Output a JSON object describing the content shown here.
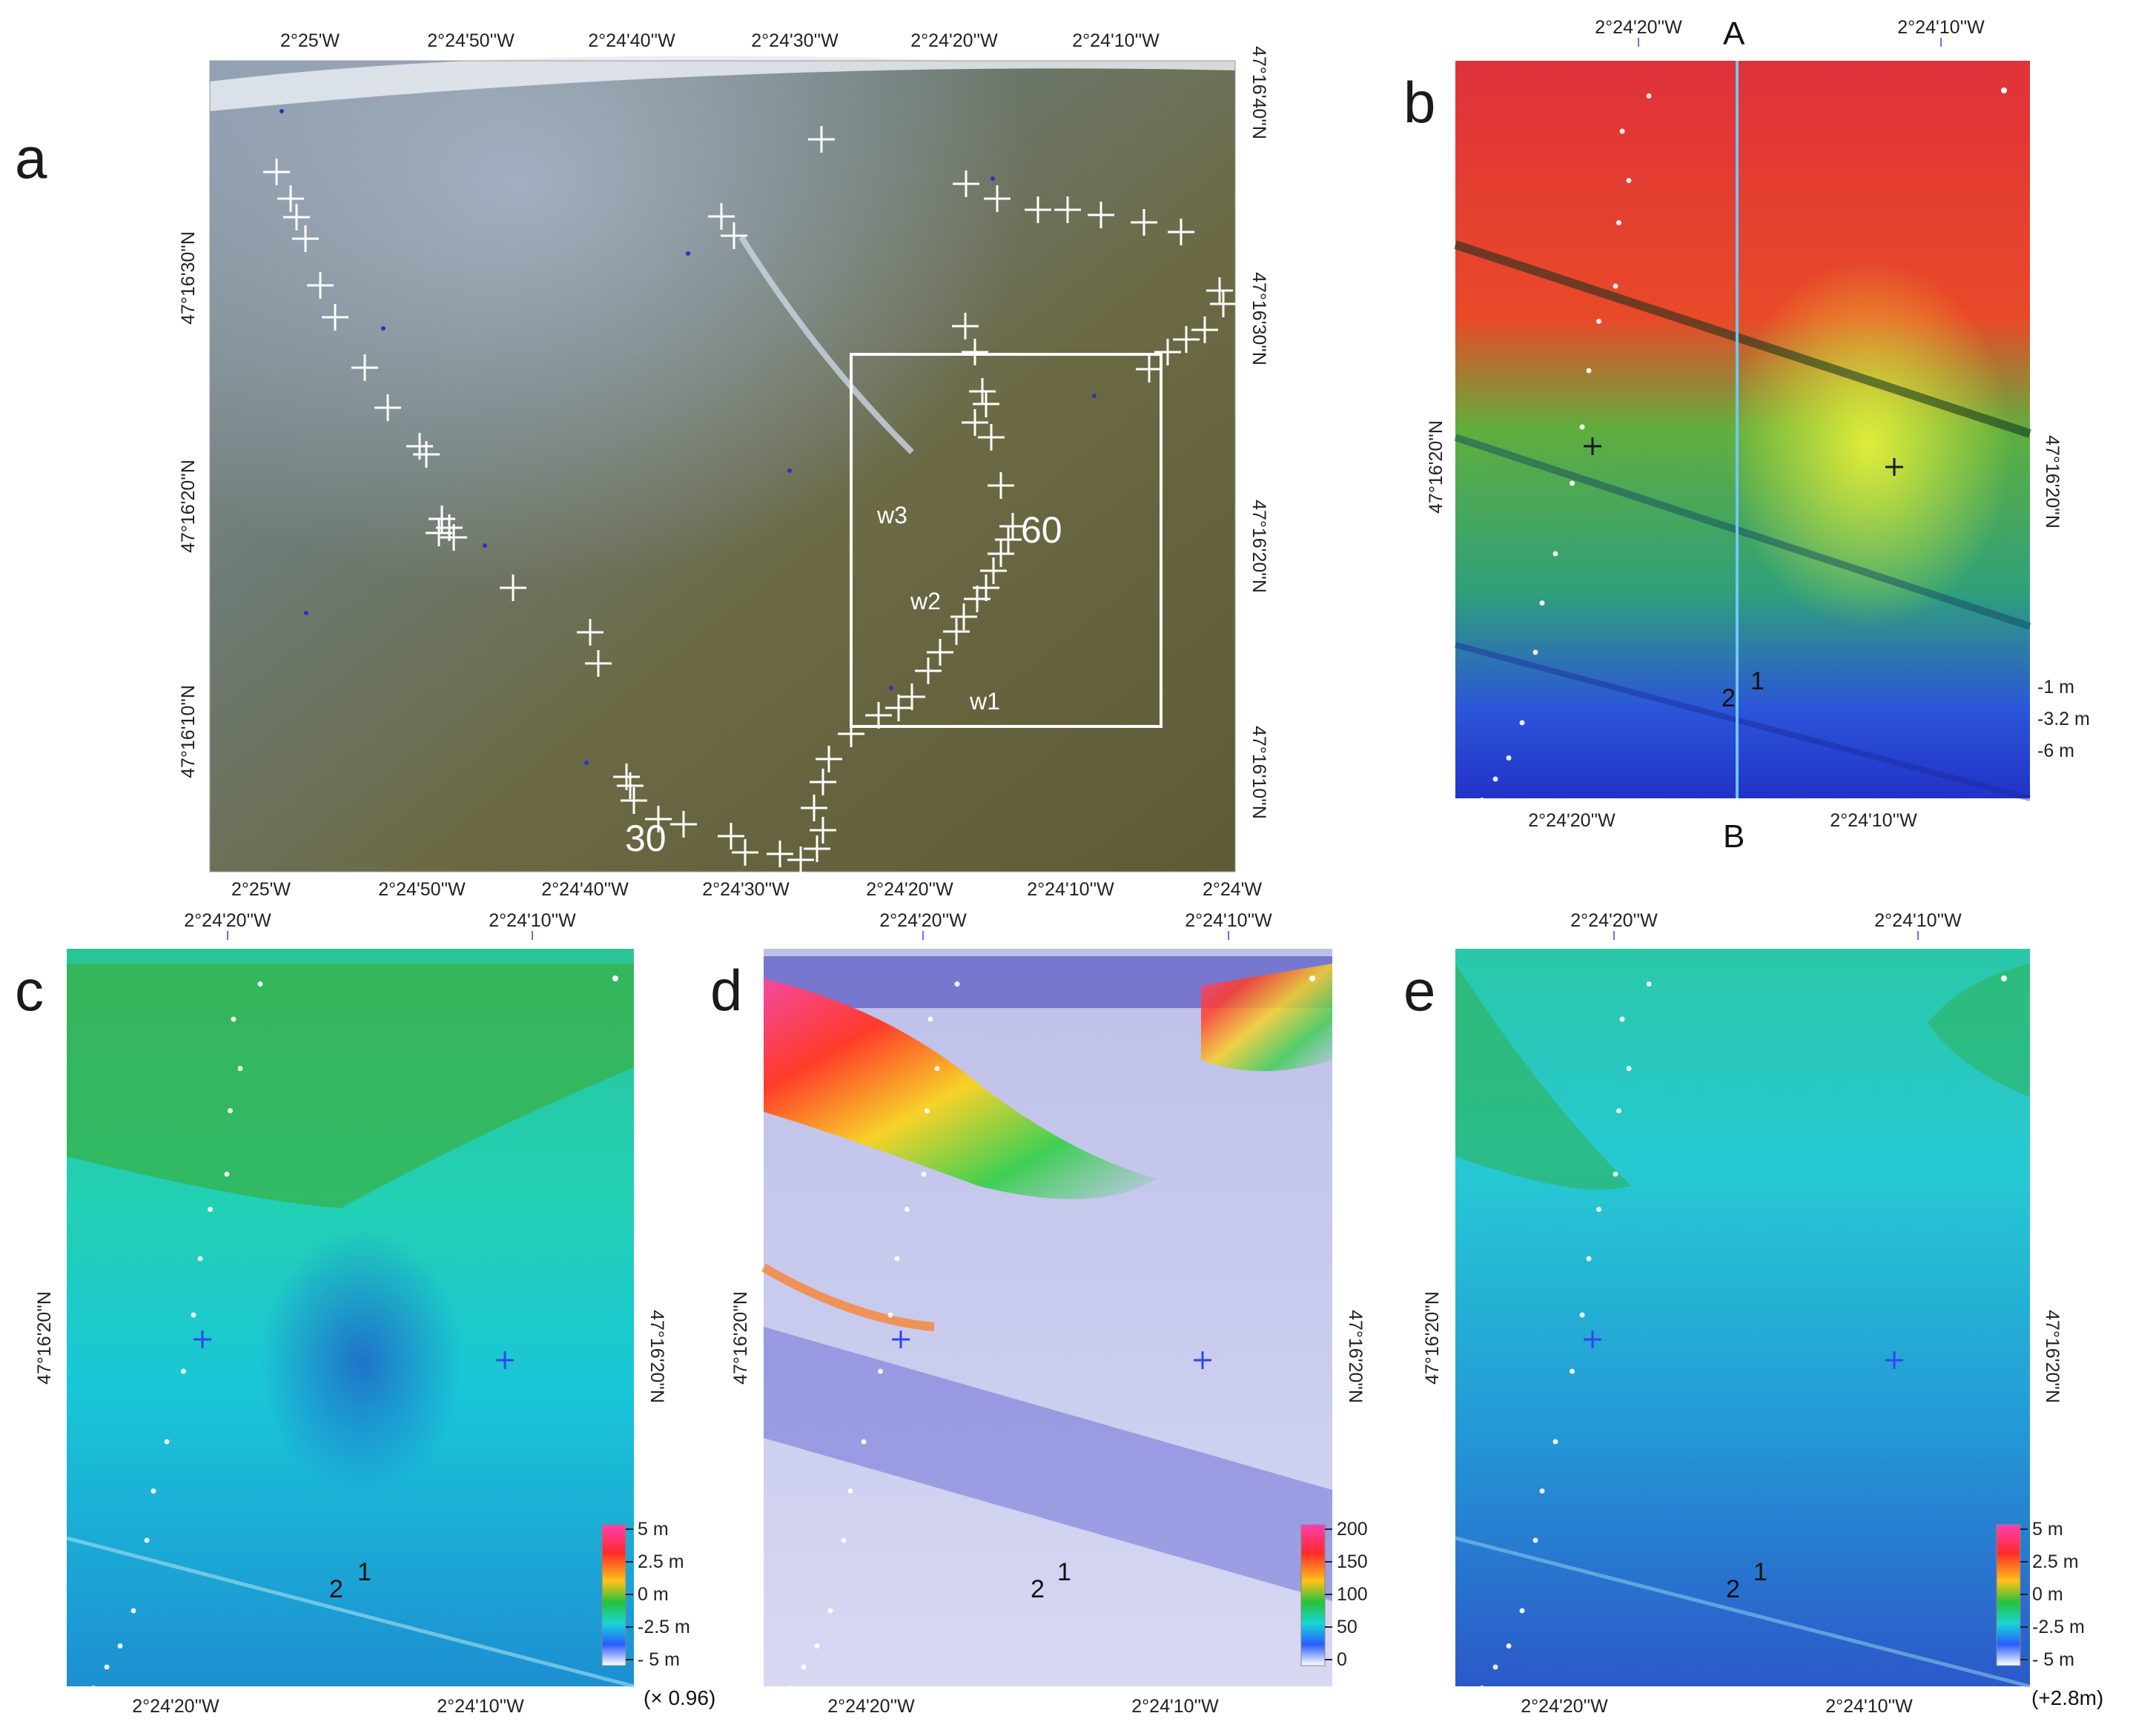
{
  "panels": {
    "a": {
      "label": "a",
      "top_ticks": [
        "2°25'W",
        "2°24'50''W",
        "2°24'40''W",
        "2°24'30''W",
        "2°24'20''W",
        "2°24'10''W"
      ],
      "bottom_ticks": [
        "2°25'W",
        "2°24'50''W",
        "2°24'40''W",
        "2°24'30''W",
        "2°24'20''W",
        "2°24'10''W",
        "2°24'W"
      ],
      "left_ticks": [
        "47°16'30''N",
        "47°16'20''N",
        "47°16'10''N"
      ],
      "right_ticks": [
        "47°16'40''N",
        "47°16'30''N",
        "47°16'20''N",
        "47°16'10''N"
      ],
      "annotations": [
        "w3",
        "w2",
        "w1",
        "60",
        "30"
      ]
    },
    "b": {
      "label": "b",
      "top_ticks": [
        "2°24'20''W",
        "2°24'10''W"
      ],
      "bottom_ticks": [
        "2°24'20''W",
        "2°24'10''W"
      ],
      "left_tick": "47°16'20''N",
      "right_tick": "47°16'20''N",
      "section_start": "A",
      "section_end": "B",
      "point_1": "1",
      "point_2": "2",
      "legend": [
        {
          "label": "-1 m",
          "color": "#ff2a3a"
        },
        {
          "label": "-3.2 m",
          "color": "#19d44a"
        },
        {
          "label": "-6 m",
          "color": "#2a4cff"
        }
      ]
    },
    "c": {
      "label": "c",
      "top_ticks": [
        "2°24'20''W",
        "2°24'10''W"
      ],
      "bottom_ticks": [
        "2°24'20''W",
        "2°24'10''W"
      ],
      "left_tick": "47°16'20''N",
      "right_tick": "47°16'20''N",
      "point_1": "1",
      "point_2": "2",
      "colorbar": [
        "5 m",
        "2.5 m",
        "0 m",
        "-2.5 m",
        "- 5 m"
      ],
      "note": "(× 0.96)"
    },
    "d": {
      "label": "d",
      "top_ticks": [
        "2°24'20''W",
        "2°24'10''W"
      ],
      "bottom_ticks": [
        "2°24'20''W",
        "2°24'10''W"
      ],
      "left_tick": "47°16'20''N",
      "right_tick": "47°16'20''N",
      "point_1": "1",
      "point_2": "2",
      "colorbar": [
        "200",
        "150",
        "100",
        "50",
        "0"
      ]
    },
    "e": {
      "label": "e",
      "top_ticks": [
        "2°24'20''W",
        "2°24'10''W"
      ],
      "bottom_ticks": [
        "2°24'20''W",
        "2°24'10''W"
      ],
      "left_tick": "47°16'20''N",
      "right_tick": "47°16'20''N",
      "point_1": "1",
      "point_2": "2",
      "colorbar": [
        "5 m",
        "2.5 m",
        "0 m",
        "-2.5 m",
        "- 5 m"
      ],
      "note": "(+2.8m)"
    }
  },
  "colors": {
    "sea_olive": "#6f6a42",
    "beach_blue": "#8697a6",
    "marker": "#ffffff",
    "frame_blue": "#6a6aff"
  }
}
